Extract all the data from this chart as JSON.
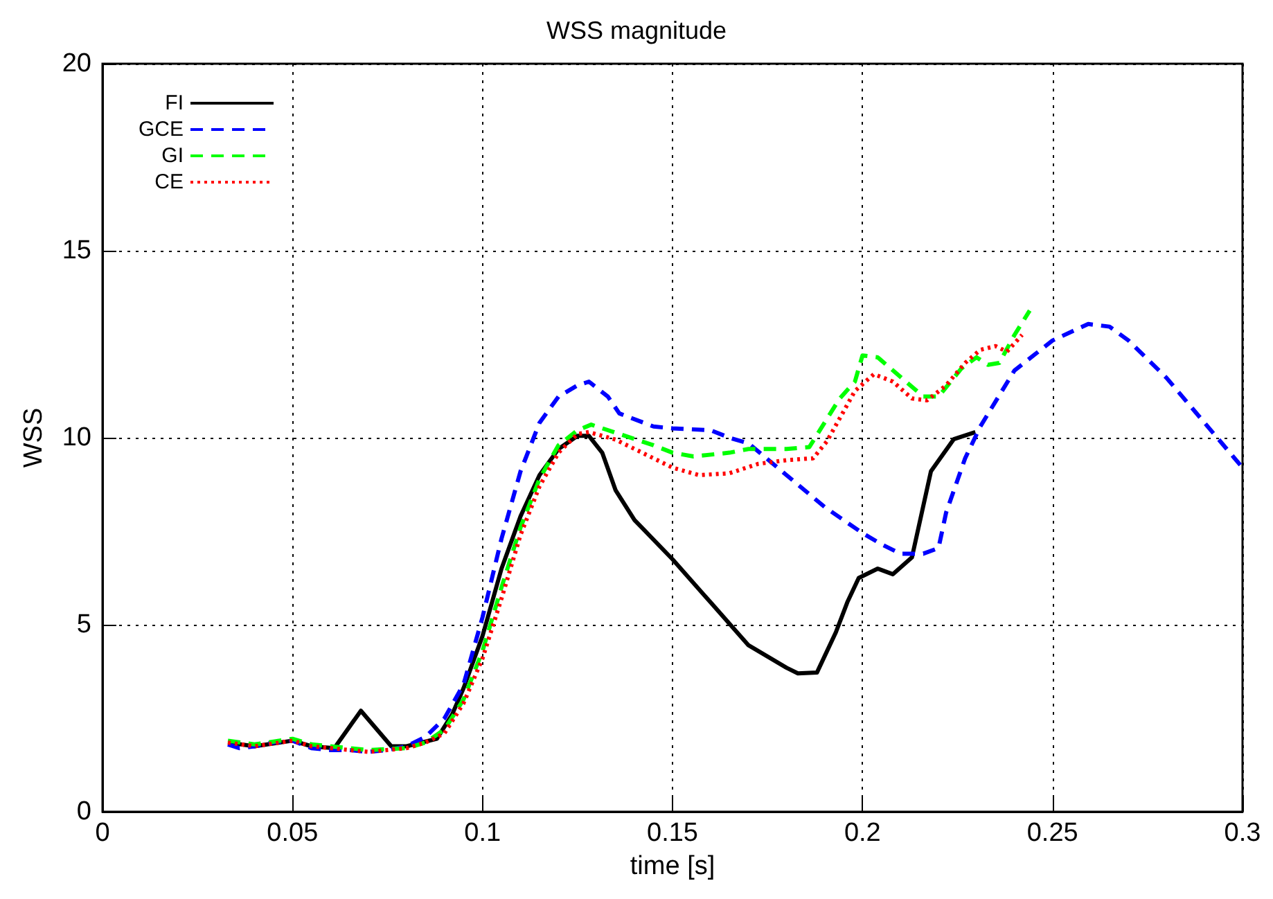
{
  "chart_data": {
    "type": "line",
    "title": "WSS magnitude",
    "xlabel": "time [s]",
    "ylabel": "WSS",
    "xlim": [
      0,
      0.3
    ],
    "xticks": [
      0,
      0.05,
      0.1,
      0.15,
      0.2,
      0.25,
      0.3
    ],
    "ylim": [
      0,
      20
    ],
    "yticks": [
      0,
      5,
      10,
      15,
      20
    ],
    "grid": true,
    "legend": "top left",
    "marker": "none",
    "series": [
      {
        "name": "FI",
        "color": "#000000",
        "line_style": "solid",
        "x": [
          0.033,
          0.04,
          0.05,
          0.055,
          0.061,
          0.068,
          0.076,
          0.08,
          0.088,
          0.092,
          0.095,
          0.1,
          0.105,
          0.11,
          0.115,
          0.12,
          0.125,
          0.128,
          0.1315,
          0.135,
          0.14,
          0.15,
          0.16,
          0.17,
          0.18,
          0.183,
          0.188,
          0.193,
          0.196,
          0.199,
          0.204,
          0.208,
          0.213,
          0.218,
          0.224,
          0.2297
        ],
        "values": [
          1.85,
          1.75,
          1.9,
          1.75,
          1.7,
          2.7,
          1.75,
          1.75,
          1.95,
          2.6,
          3.3,
          4.7,
          6.5,
          7.9,
          9.0,
          9.7,
          10.05,
          10.05,
          9.6,
          8.6,
          7.8,
          6.75,
          5.6,
          4.45,
          3.85,
          3.7,
          3.72,
          4.8,
          5.6,
          6.25,
          6.5,
          6.35,
          6.8,
          9.1,
          9.96,
          10.15
        ]
      },
      {
        "name": "GCE",
        "color": "#0000ff",
        "line_style": "dashed",
        "x": [
          0.033,
          0.036,
          0.04,
          0.045,
          0.05,
          0.055,
          0.06,
          0.065,
          0.07,
          0.075,
          0.08,
          0.085,
          0.09,
          0.095,
          0.1,
          0.105,
          0.11,
          0.115,
          0.12,
          0.125,
          0.128,
          0.133,
          0.136,
          0.145,
          0.15,
          0.16,
          0.165,
          0.17,
          0.18,
          0.19,
          0.2,
          0.205,
          0.21,
          0.216,
          0.22,
          0.222,
          0.227,
          0.231,
          0.24,
          0.25,
          0.2594,
          0.265,
          0.27,
          0.28,
          0.29,
          0.3
        ],
        "values": [
          1.8,
          1.7,
          1.75,
          1.85,
          1.9,
          1.7,
          1.65,
          1.65,
          1.6,
          1.65,
          1.75,
          2.0,
          2.5,
          3.4,
          5.2,
          7.3,
          9.1,
          10.4,
          11.1,
          11.4,
          11.5,
          11.1,
          10.65,
          10.3,
          10.25,
          10.2,
          10.0,
          9.85,
          9.0,
          8.15,
          7.45,
          7.15,
          6.9,
          6.9,
          7.05,
          8.0,
          9.45,
          10.3,
          11.8,
          12.6,
          13.04,
          12.97,
          12.6,
          11.6,
          10.4,
          9.2
        ]
      },
      {
        "name": "GI",
        "color": "#00ff00",
        "line_style": "dashed",
        "x": [
          0.033,
          0.04,
          0.05,
          0.055,
          0.06,
          0.07,
          0.08,
          0.085,
          0.09,
          0.095,
          0.1,
          0.105,
          0.11,
          0.115,
          0.12,
          0.125,
          0.1286,
          0.136,
          0.145,
          0.15,
          0.1555,
          0.165,
          0.17,
          0.18,
          0.186,
          0.19,
          0.194,
          0.198,
          0.2,
          0.204,
          0.208,
          0.212,
          0.216,
          0.22,
          0.222,
          0.226,
          0.23,
          0.233,
          0.236,
          0.24,
          0.244
        ],
        "values": [
          1.9,
          1.8,
          1.95,
          1.8,
          1.75,
          1.65,
          1.7,
          1.85,
          2.2,
          3.0,
          4.3,
          6.0,
          7.6,
          8.9,
          9.8,
          10.2,
          10.35,
          10.1,
          9.8,
          9.6,
          9.5,
          9.6,
          9.7,
          9.7,
          9.75,
          10.4,
          11.05,
          11.5,
          12.2,
          12.15,
          11.8,
          11.45,
          11.1,
          11.1,
          11.35,
          11.85,
          12.15,
          11.95,
          12.0,
          12.75,
          13.4
        ]
      },
      {
        "name": "CE",
        "color": "#ff0000",
        "line_style": "dotted",
        "x": [
          0.033,
          0.04,
          0.05,
          0.055,
          0.06,
          0.07,
          0.08,
          0.085,
          0.09,
          0.095,
          0.1,
          0.105,
          0.11,
          0.115,
          0.12,
          0.125,
          0.128,
          0.135,
          0.14,
          0.15,
          0.157,
          0.165,
          0.1725,
          0.18,
          0.187,
          0.1906,
          0.195,
          0.198,
          0.203,
          0.208,
          0.213,
          0.217,
          0.222,
          0.227,
          0.231,
          0.235,
          0.238,
          0.242
        ],
        "values": [
          1.85,
          1.75,
          1.9,
          1.75,
          1.7,
          1.6,
          1.7,
          1.85,
          2.1,
          2.9,
          4.1,
          5.7,
          7.4,
          8.7,
          9.6,
          10.1,
          10.15,
          9.95,
          9.7,
          9.2,
          9.0,
          9.05,
          9.3,
          9.4,
          9.45,
          9.9,
          10.7,
          11.25,
          11.7,
          11.5,
          11.05,
          11.0,
          11.4,
          12.0,
          12.35,
          12.45,
          12.3,
          12.75
        ]
      }
    ]
  }
}
